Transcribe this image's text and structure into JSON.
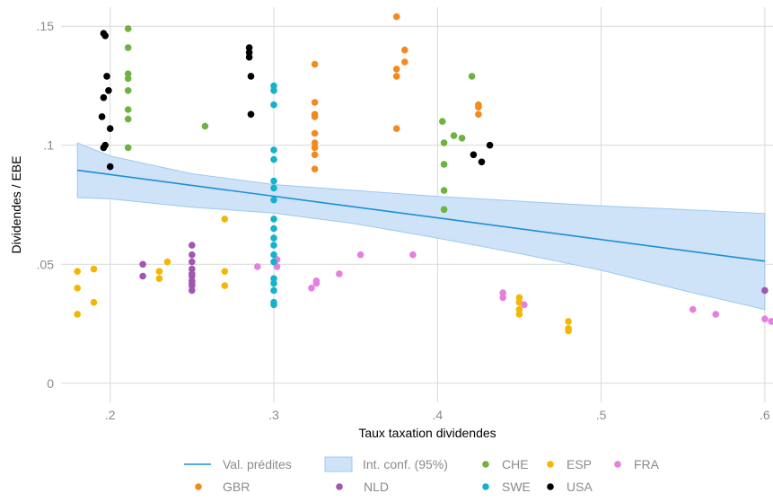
{
  "chart_data": {
    "type": "scatter",
    "xlabel": "Taux taxation dividendes",
    "ylabel": "Dividendes / EBE",
    "xlim": [
      0.17,
      0.605
    ],
    "ylim": [
      -0.008,
      0.158
    ],
    "x_ticks": [
      0.2,
      0.3,
      0.4,
      0.5,
      0.6
    ],
    "x_tick_labels": [
      ".2",
      ".3",
      ".4",
      ".5",
      ".6"
    ],
    "y_ticks": [
      0,
      0.05,
      0.1,
      0.15
    ],
    "y_tick_labels": [
      "0",
      ".05",
      ".1",
      ".15"
    ],
    "grid": true,
    "legend_position": "bottom",
    "fit": {
      "name": "Val. prédites",
      "color": "#1a8fd6",
      "x": [
        0.18,
        0.6
      ],
      "y": [
        0.0895,
        0.0513
      ]
    },
    "ci": {
      "name": "Int. conf. (95%)",
      "fill": "#cfe3f8",
      "stroke": "#9cc8f0",
      "x": [
        0.18,
        0.2,
        0.25,
        0.3,
        0.35,
        0.4,
        0.45,
        0.5,
        0.55,
        0.6
      ],
      "upper": [
        0.101,
        0.0955,
        0.088,
        0.0835,
        0.081,
        0.0785,
        0.0765,
        0.0745,
        0.073,
        0.0713
      ],
      "lower": [
        0.078,
        0.0775,
        0.074,
        0.0715,
        0.067,
        0.061,
        0.0545,
        0.0475,
        0.039,
        0.031
      ]
    },
    "series": [
      {
        "name": "CHE",
        "color": "#6db33f",
        "points": [
          [
            0.211,
            0.149
          ],
          [
            0.211,
            0.141
          ],
          [
            0.211,
            0.13
          ],
          [
            0.211,
            0.128
          ],
          [
            0.211,
            0.123
          ],
          [
            0.211,
            0.115
          ],
          [
            0.211,
            0.111
          ],
          [
            0.211,
            0.099
          ],
          [
            0.258,
            0.108
          ],
          [
            0.403,
            0.11
          ],
          [
            0.404,
            0.101
          ],
          [
            0.41,
            0.104
          ],
          [
            0.415,
            0.103
          ],
          [
            0.404,
            0.092
          ],
          [
            0.404,
            0.081
          ],
          [
            0.404,
            0.073
          ],
          [
            0.421,
            0.129
          ]
        ]
      },
      {
        "name": "ESP",
        "color": "#f2b705",
        "points": [
          [
            0.18,
            0.047
          ],
          [
            0.18,
            0.04
          ],
          [
            0.18,
            0.029
          ],
          [
            0.19,
            0.048
          ],
          [
            0.19,
            0.034
          ],
          [
            0.23,
            0.047
          ],
          [
            0.23,
            0.044
          ],
          [
            0.235,
            0.051
          ],
          [
            0.27,
            0.069
          ],
          [
            0.27,
            0.047
          ],
          [
            0.27,
            0.041
          ],
          [
            0.45,
            0.036
          ],
          [
            0.45,
            0.034
          ],
          [
            0.45,
            0.031
          ],
          [
            0.45,
            0.029
          ],
          [
            0.48,
            0.026
          ],
          [
            0.48,
            0.023
          ],
          [
            0.48,
            0.022
          ]
        ]
      },
      {
        "name": "FRA",
        "color": "#e580de",
        "points": [
          [
            0.29,
            0.049
          ],
          [
            0.302,
            0.052
          ],
          [
            0.302,
            0.049
          ],
          [
            0.323,
            0.04
          ],
          [
            0.326,
            0.043
          ],
          [
            0.326,
            0.042
          ],
          [
            0.34,
            0.046
          ],
          [
            0.353,
            0.054
          ],
          [
            0.385,
            0.054
          ],
          [
            0.44,
            0.038
          ],
          [
            0.44,
            0.036
          ],
          [
            0.453,
            0.033
          ],
          [
            0.556,
            0.031
          ],
          [
            0.57,
            0.029
          ],
          [
            0.6,
            0.027
          ],
          [
            0.604,
            0.026
          ]
        ]
      },
      {
        "name": "GBR",
        "color": "#f28a1e",
        "points": [
          [
            0.325,
            0.134
          ],
          [
            0.325,
            0.118
          ],
          [
            0.325,
            0.113
          ],
          [
            0.325,
            0.112
          ],
          [
            0.325,
            0.105
          ],
          [
            0.325,
            0.101
          ],
          [
            0.325,
            0.099
          ],
          [
            0.325,
            0.096
          ],
          [
            0.325,
            0.09
          ],
          [
            0.375,
            0.154
          ],
          [
            0.375,
            0.132
          ],
          [
            0.375,
            0.129
          ],
          [
            0.375,
            0.107
          ],
          [
            0.38,
            0.14
          ],
          [
            0.38,
            0.135
          ],
          [
            0.425,
            0.117
          ],
          [
            0.425,
            0.116
          ],
          [
            0.425,
            0.113
          ]
        ]
      },
      {
        "name": "NLD",
        "color": "#a157b0",
        "points": [
          [
            0.22,
            0.05
          ],
          [
            0.22,
            0.045
          ],
          [
            0.25,
            0.058
          ],
          [
            0.25,
            0.054
          ],
          [
            0.25,
            0.051
          ],
          [
            0.25,
            0.048
          ],
          [
            0.25,
            0.046
          ],
          [
            0.25,
            0.045
          ],
          [
            0.25,
            0.043
          ],
          [
            0.25,
            0.042
          ],
          [
            0.25,
            0.041
          ],
          [
            0.25,
            0.039
          ],
          [
            0.6,
            0.039
          ]
        ]
      },
      {
        "name": "SWE",
        "color": "#16b2cc",
        "points": [
          [
            0.3,
            0.125
          ],
          [
            0.3,
            0.123
          ],
          [
            0.3,
            0.117
          ],
          [
            0.3,
            0.098
          ],
          [
            0.3,
            0.094
          ],
          [
            0.3,
            0.085
          ],
          [
            0.3,
            0.082
          ],
          [
            0.3,
            0.077
          ],
          [
            0.3,
            0.069
          ],
          [
            0.3,
            0.065
          ],
          [
            0.3,
            0.061
          ],
          [
            0.3,
            0.058
          ],
          [
            0.3,
            0.054
          ],
          [
            0.3,
            0.051
          ],
          [
            0.3,
            0.044
          ],
          [
            0.3,
            0.042
          ],
          [
            0.3,
            0.039
          ],
          [
            0.3,
            0.034
          ],
          [
            0.3,
            0.033
          ]
        ]
      },
      {
        "name": "USA",
        "color": "#000000",
        "points": [
          [
            0.196,
            0.147
          ],
          [
            0.197,
            0.146
          ],
          [
            0.198,
            0.129
          ],
          [
            0.199,
            0.123
          ],
          [
            0.196,
            0.12
          ],
          [
            0.195,
            0.112
          ],
          [
            0.2,
            0.107
          ],
          [
            0.197,
            0.1
          ],
          [
            0.196,
            0.099
          ],
          [
            0.2,
            0.091
          ],
          [
            0.285,
            0.141
          ],
          [
            0.285,
            0.139
          ],
          [
            0.285,
            0.137
          ],
          [
            0.286,
            0.129
          ],
          [
            0.286,
            0.113
          ],
          [
            0.422,
            0.096
          ],
          [
            0.427,
            0.093
          ],
          [
            0.432,
            0.1
          ]
        ]
      }
    ],
    "legend": {
      "rows": [
        [
          "fit",
          "ci",
          "CHE",
          "ESP",
          "FRA"
        ],
        [
          "GBR",
          "NLD",
          "SWE",
          "USA"
        ]
      ]
    }
  }
}
